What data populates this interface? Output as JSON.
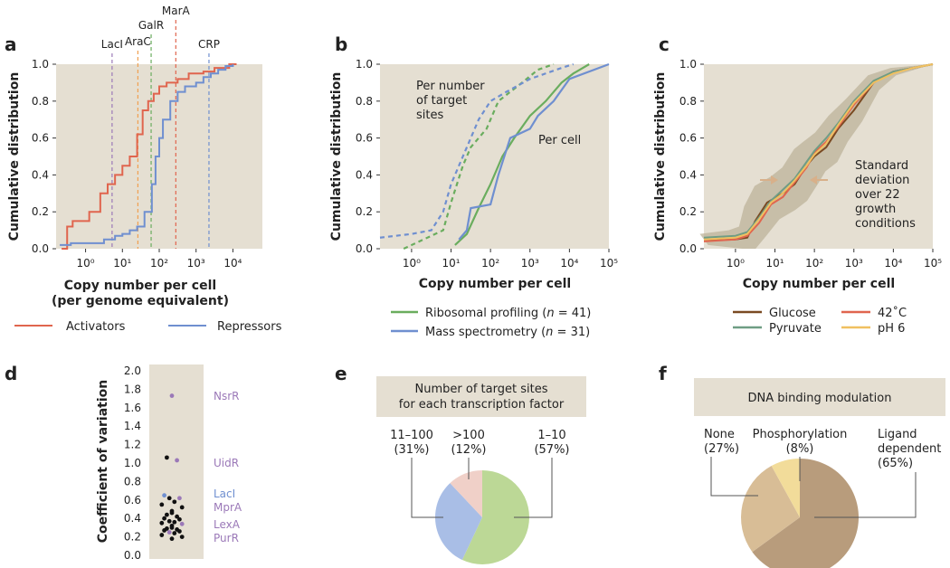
{
  "figure": {
    "panels": {
      "a": "a",
      "b": "b",
      "c": "c",
      "d": "d",
      "e": "e",
      "f": "f"
    }
  },
  "colors": {
    "bg": "#e5dfd2",
    "activators": "#e0654e",
    "repressors": "#6f8fd0",
    "ribo": "#6aad5e",
    "mass": "#6f8fd0",
    "glucose": "#7a4a22",
    "pyruvate": "#6f9d84",
    "c42": "#e0654e",
    "ph6": "#f0c060",
    "band": "#bcb39a",
    "purple": "#9b79b8",
    "blue_label": "#6f8fd0",
    "pie_green": "#bcd896",
    "pie_blue": "#a9bee6",
    "pie_pink": "#f0d0c8",
    "pie_dark": "#b89c7c",
    "pie_mid": "#d8bd96",
    "pie_yellow": "#f2dc9a"
  },
  "panel_a": {
    "ylabel": "Cumulative distribution",
    "xlabel_1": "Copy number per cell",
    "xlabel_2": "(per genome equivalent)",
    "ytick_labels": [
      "0.0",
      "0.2",
      "0.4",
      "0.6",
      "0.8",
      "1.0"
    ],
    "xtick_labels": [
      "10⁰",
      "10¹",
      "10²",
      "10³",
      "10⁴"
    ],
    "legend": [
      "Activators",
      "Repressors"
    ],
    "markers": [
      {
        "label": "LacI",
        "logx": 0.72,
        "color": "#9b79b8"
      },
      {
        "label": "AraC",
        "logx": 1.42,
        "color": "#f0a050"
      },
      {
        "label": "GalR",
        "logx": 1.78,
        "color": "#6aad5e"
      },
      {
        "label": "MarA",
        "logx": 2.45,
        "color": "#e0654e"
      },
      {
        "label": "CRP",
        "logx": 3.35,
        "color": "#6f8fd0"
      }
    ]
  },
  "panel_b": {
    "ylabel": "Cumulative distribution",
    "xlabel": "Copy number per cell",
    "ytick_labels": [
      "0.0",
      "0.2",
      "0.4",
      "0.6",
      "0.8",
      "1.0"
    ],
    "xtick_labels": [
      "10⁰",
      "10¹",
      "10²",
      "10³",
      "10⁴",
      "10⁵"
    ],
    "annotation_1": [
      "Per number",
      "of target",
      "sites"
    ],
    "annotation_2": "Per cell",
    "legend_1": "Ribosomal profiling (",
    "legend_1_n": "n",
    "legend_1_end": " = 41)",
    "legend_2": "Mass spectrometry (",
    "legend_2_n": "n",
    "legend_2_end": " = 31)"
  },
  "panel_c": {
    "ylabel": "Cumulative distribution",
    "xlabel": "Copy number per cell",
    "ytick_labels": [
      "0.0",
      "0.2",
      "0.4",
      "0.6",
      "0.8",
      "1.0"
    ],
    "xtick_labels": [
      "10⁰",
      "10¹",
      "10²",
      "10³",
      "10⁴",
      "10⁵"
    ],
    "annotation": [
      "Standard",
      "deviation",
      "over 22",
      "growth",
      "conditions"
    ],
    "legend": [
      "Glucose",
      "42˚C",
      "Pyruvate",
      "pH 6"
    ]
  },
  "panel_d": {
    "ylabel": "Coefficient of variation",
    "ytick_labels": [
      "0.0",
      "0.2",
      "0.4",
      "0.6",
      "0.8",
      "1.0",
      "1.2",
      "1.4",
      "1.6",
      "1.8",
      "2.0"
    ],
    "labels": [
      "NsrR",
      "UidR",
      "LacI",
      "MprA",
      "LexA",
      "PurR"
    ]
  },
  "panel_e": {
    "title_1": "Number of target sites",
    "title_2": "for each transcription factor",
    "slices": [
      {
        "label": "1–10",
        "pct": "(57%)",
        "value": 57
      },
      {
        "label": "11–100",
        "pct": "(31%)",
        "value": 31
      },
      {
        "label": ">100",
        "pct": "(12%)",
        "value": 12
      }
    ]
  },
  "panel_f": {
    "title": "DNA binding modulation",
    "slices": [
      {
        "label": "None",
        "pct": "(27%)",
        "value": 27
      },
      {
        "label": "Phosphorylation",
        "pct": "(8%)",
        "value": 8
      },
      {
        "label": "Ligand",
        "label_2": "dependent",
        "pct": "(65%)",
        "value": 65
      }
    ]
  },
  "chart_data": [
    {
      "panel": "a",
      "type": "line",
      "title": "",
      "xlabel": "Copy number per cell (per genome equivalent)",
      "ylabel": "Cumulative distribution",
      "xscale": "log10",
      "xlim_log10": [
        -0.8,
        4.8
      ],
      "ylim": [
        0,
        1
      ],
      "series": [
        {
          "name": "Activators",
          "step": true,
          "log10_x": [
            -0.65,
            -0.5,
            -0.35,
            0.1,
            0.4,
            0.6,
            0.8,
            1.0,
            1.2,
            1.4,
            1.55,
            1.7,
            1.85,
            2.0,
            2.2,
            2.5,
            2.8,
            3.0,
            3.2,
            3.5,
            3.9,
            4.1
          ],
          "y": [
            0.0,
            0.12,
            0.15,
            0.2,
            0.3,
            0.35,
            0.4,
            0.45,
            0.5,
            0.62,
            0.75,
            0.8,
            0.84,
            0.88,
            0.9,
            0.92,
            0.95,
            0.95,
            0.96,
            0.98,
            1.0,
            1.0
          ]
        },
        {
          "name": "Repressors",
          "step": true,
          "log10_x": [
            -0.7,
            -0.4,
            0.0,
            0.5,
            0.8,
            1.0,
            1.2,
            1.4,
            1.6,
            1.8,
            1.9,
            2.0,
            2.1,
            2.3,
            2.5,
            2.7,
            3.0,
            3.2,
            3.4,
            3.6,
            3.8,
            4.0
          ],
          "y": [
            0.02,
            0.03,
            0.03,
            0.05,
            0.07,
            0.08,
            0.1,
            0.12,
            0.2,
            0.35,
            0.5,
            0.6,
            0.7,
            0.8,
            0.85,
            0.88,
            0.9,
            0.93,
            0.95,
            0.97,
            0.99,
            1.0
          ]
        }
      ]
    },
    {
      "panel": "b",
      "type": "line",
      "xlabel": "Copy number per cell",
      "ylabel": "Cumulative distribution",
      "xscale": "log10",
      "xlim_log10": [
        -0.8,
        5
      ],
      "ylim": [
        0,
        1
      ],
      "series": [
        {
          "name": "Ribosomal profiling, per cell",
          "style": "solid",
          "log10_x": [
            1.1,
            1.4,
            1.7,
            2.0,
            2.3,
            2.6,
            3.0,
            3.4,
            3.8,
            4.1,
            4.5
          ],
          "y": [
            0.02,
            0.08,
            0.22,
            0.35,
            0.5,
            0.6,
            0.72,
            0.8,
            0.9,
            0.95,
            1.0
          ]
        },
        {
          "name": "Mass spectrometry, per cell",
          "style": "solid",
          "log10_x": [
            1.2,
            1.4,
            1.5,
            2.0,
            2.2,
            2.5,
            3.0,
            3.2,
            3.6,
            4.0,
            5.0
          ],
          "y": [
            0.05,
            0.1,
            0.22,
            0.24,
            0.4,
            0.6,
            0.65,
            0.72,
            0.8,
            0.92,
            1.0
          ]
        },
        {
          "name": "Ribosomal profiling, per target site",
          "style": "dashed",
          "log10_x": [
            -0.2,
            0.3,
            0.8,
            1.0,
            1.3,
            1.5,
            1.9,
            2.2,
            2.8,
            3.2,
            3.6
          ],
          "y": [
            0.0,
            0.05,
            0.1,
            0.25,
            0.45,
            0.55,
            0.65,
            0.8,
            0.9,
            0.97,
            1.0
          ]
        },
        {
          "name": "Mass spectrometry, per target site",
          "style": "dashed",
          "log10_x": [
            -0.8,
            0.0,
            0.5,
            0.8,
            1.0,
            1.2,
            1.5,
            1.7,
            2.0,
            2.4,
            3.0,
            3.8,
            4.1
          ],
          "y": [
            0.06,
            0.08,
            0.1,
            0.2,
            0.35,
            0.45,
            0.6,
            0.7,
            0.8,
            0.85,
            0.92,
            0.98,
            1.0
          ]
        }
      ]
    },
    {
      "panel": "c",
      "type": "line",
      "xlabel": "Copy number per cell",
      "ylabel": "Cumulative distribution",
      "xscale": "log10",
      "xlim_log10": [
        -0.8,
        5
      ],
      "ylim": [
        0,
        1
      ],
      "series": [
        {
          "name": "Glucose",
          "log10_x": [
            -0.8,
            0.0,
            0.3,
            0.5,
            0.8,
            1.2,
            1.5,
            1.8,
            2.0,
            2.3,
            2.6,
            3.0,
            3.5,
            4.0,
            4.5,
            5.0
          ],
          "y": [
            0.05,
            0.05,
            0.06,
            0.15,
            0.25,
            0.3,
            0.35,
            0.45,
            0.5,
            0.55,
            0.65,
            0.75,
            0.9,
            0.96,
            0.98,
            1.0
          ]
        },
        {
          "name": "42˚C",
          "log10_x": [
            -0.8,
            0.0,
            0.3,
            0.6,
            0.9,
            1.2,
            1.5,
            1.8,
            2.0,
            2.3,
            2.6,
            3.0,
            3.5,
            4.0,
            4.5,
            5.0
          ],
          "y": [
            0.04,
            0.05,
            0.07,
            0.14,
            0.24,
            0.28,
            0.36,
            0.44,
            0.52,
            0.58,
            0.66,
            0.78,
            0.9,
            0.96,
            0.98,
            1.0
          ]
        },
        {
          "name": "Pyruvate",
          "log10_x": [
            -0.8,
            0.0,
            0.3,
            0.6,
            0.9,
            1.2,
            1.5,
            1.8,
            2.0,
            2.3,
            2.6,
            3.0,
            3.5,
            4.0,
            4.5,
            5.0
          ],
          "y": [
            0.06,
            0.07,
            0.09,
            0.17,
            0.26,
            0.32,
            0.38,
            0.47,
            0.53,
            0.6,
            0.68,
            0.8,
            0.91,
            0.96,
            0.98,
            1.0
          ]
        },
        {
          "name": "pH 6",
          "log10_x": [
            -0.8,
            0.0,
            0.3,
            0.6,
            0.9,
            1.2,
            1.5,
            1.8,
            2.0,
            2.3,
            2.6,
            3.0,
            3.5,
            4.0,
            4.5,
            5.0
          ],
          "y": [
            0.05,
            0.06,
            0.08,
            0.16,
            0.25,
            0.3,
            0.37,
            0.45,
            0.51,
            0.57,
            0.67,
            0.79,
            0.9,
            0.95,
            0.98,
            1.0
          ]
        }
      ]
    },
    {
      "panel": "d",
      "type": "scatter",
      "ylabel": "Coefficient of variation",
      "ylim": [
        0,
        2.0
      ],
      "points": [
        {
          "y": 1.73,
          "kind": "purple"
        },
        {
          "y": 1.06,
          "kind": "black"
        },
        {
          "y": 1.03,
          "kind": "purple"
        },
        {
          "y": 0.65,
          "kind": "blue"
        },
        {
          "y": 0.62,
          "kind": "purple"
        },
        {
          "y": 0.62,
          "kind": "black"
        },
        {
          "y": 0.58,
          "kind": "black"
        },
        {
          "y": 0.55,
          "kind": "black"
        },
        {
          "y": 0.52,
          "kind": "black"
        },
        {
          "y": 0.48,
          "kind": "black"
        },
        {
          "y": 0.46,
          "kind": "black"
        },
        {
          "y": 0.44,
          "kind": "black"
        },
        {
          "y": 0.42,
          "kind": "black"
        },
        {
          "y": 0.4,
          "kind": "black"
        },
        {
          "y": 0.39,
          "kind": "black"
        },
        {
          "y": 0.37,
          "kind": "black"
        },
        {
          "y": 0.36,
          "kind": "black"
        },
        {
          "y": 0.35,
          "kind": "black"
        },
        {
          "y": 0.34,
          "kind": "purple"
        },
        {
          "y": 0.32,
          "kind": "black"
        },
        {
          "y": 0.3,
          "kind": "black"
        },
        {
          "y": 0.29,
          "kind": "black"
        },
        {
          "y": 0.28,
          "kind": "black"
        },
        {
          "y": 0.27,
          "kind": "black"
        },
        {
          "y": 0.26,
          "kind": "black"
        },
        {
          "y": 0.25,
          "kind": "purple"
        },
        {
          "y": 0.24,
          "kind": "black"
        },
        {
          "y": 0.22,
          "kind": "black"
        },
        {
          "y": 0.2,
          "kind": "black"
        },
        {
          "y": 0.18,
          "kind": "black"
        }
      ]
    },
    {
      "panel": "e",
      "type": "pie",
      "title": "Number of target sites for each transcription factor",
      "slices": [
        {
          "label": "1–10",
          "value": 57
        },
        {
          "label": "11–100",
          "value": 31
        },
        {
          "label": ">100",
          "value": 12
        }
      ]
    },
    {
      "panel": "f",
      "type": "pie",
      "title": "DNA binding modulation",
      "slices": [
        {
          "label": "Ligand dependent",
          "value": 65
        },
        {
          "label": "None",
          "value": 27
        },
        {
          "label": "Phosphorylation",
          "value": 8
        }
      ]
    }
  ]
}
